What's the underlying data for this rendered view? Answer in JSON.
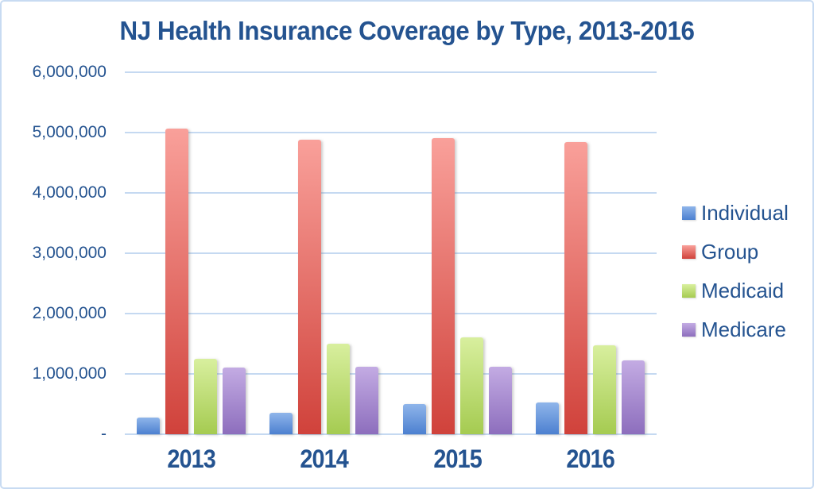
{
  "chart_data": {
    "type": "bar",
    "title": "NJ Health Insurance Coverage by Type, 2013-2016",
    "categories": [
      "2013",
      "2014",
      "2015",
      "2016"
    ],
    "series": [
      {
        "name": "Individual",
        "values": [
          280000,
          360000,
          500000,
          530000
        ],
        "color_top": "#8FB5EA",
        "color_bottom": "#4C80D0"
      },
      {
        "name": "Group",
        "values": [
          5060000,
          4880000,
          4910000,
          4840000
        ],
        "color_top": "#F9A09A",
        "color_bottom": "#D0423B"
      },
      {
        "name": "Medicaid",
        "values": [
          1250000,
          1500000,
          1600000,
          1480000
        ],
        "color_top": "#D8EF9E",
        "color_bottom": "#A5CB51"
      },
      {
        "name": "Medicare",
        "values": [
          1100000,
          1120000,
          1120000,
          1230000
        ],
        "color_top": "#C3ABE3",
        "color_bottom": "#8D6EBD"
      }
    ],
    "y_ticks": [
      "6,000,000",
      "5,000,000",
      "4,000,000",
      "3,000,000",
      "2,000,000",
      "1,000,000",
      "-"
    ],
    "ylim": [
      0,
      6000000
    ],
    "xlabel": "",
    "ylabel": "",
    "grid": true,
    "legend_position": "right"
  },
  "colors": {
    "text": "#245390",
    "gridline": "#C5D9F1",
    "border": "#C8DBF2",
    "background": "#FFFFFF"
  }
}
